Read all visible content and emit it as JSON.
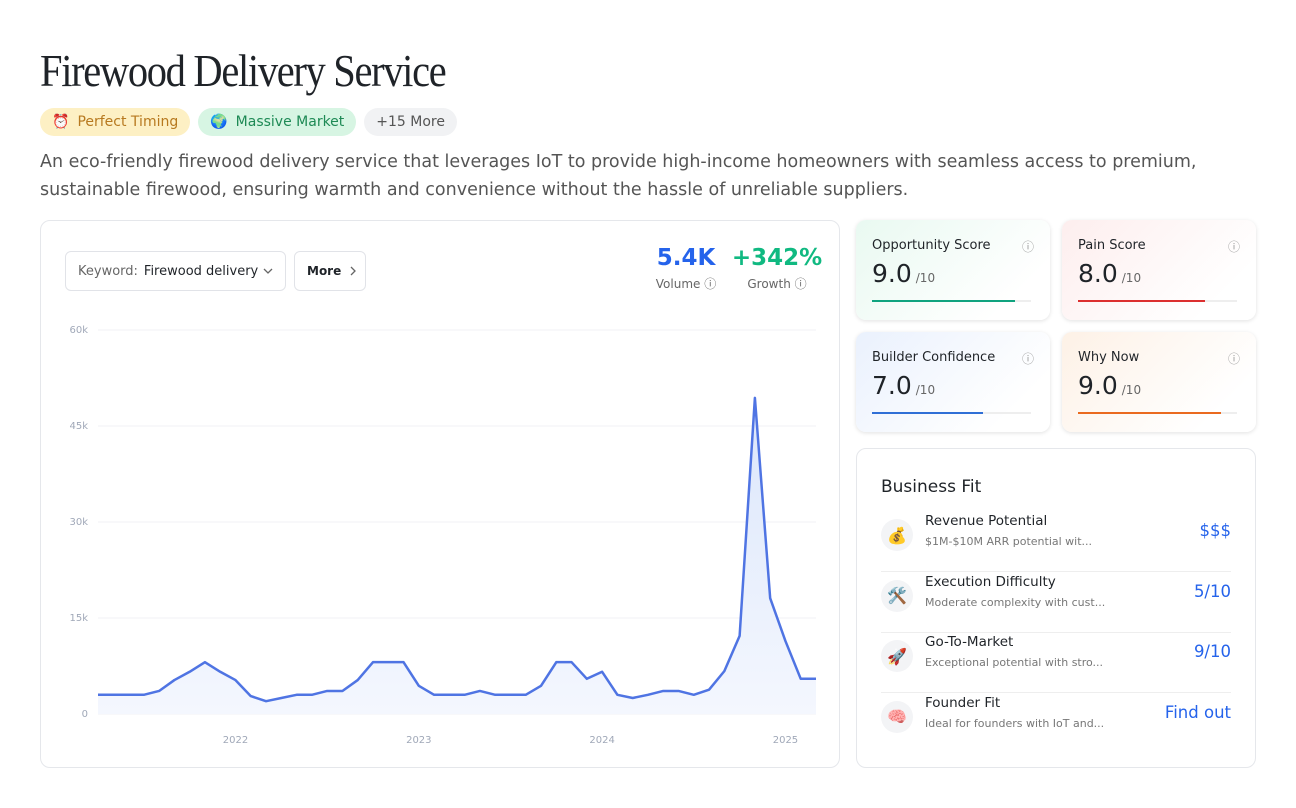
{
  "header": {
    "title": "Firewood Delivery Service",
    "tags": [
      {
        "icon": "⏰",
        "text": "Perfect Timing"
      },
      {
        "icon": "🌍",
        "text": "Massive Market"
      },
      {
        "text": "+15 More"
      }
    ],
    "description": "An eco-friendly firewood delivery service that leverages IoT to provide high-income homeowners with seamless access to premium, sustainable firewood, ensuring warmth and convenience without the hassle of unreliable suppliers."
  },
  "controls": {
    "keyword_label": "Keyword:",
    "keyword": "Firewood delivery",
    "more": "More"
  },
  "stats": [
    {
      "value": "5.4K",
      "label": "Volume"
    },
    {
      "value": "+342%",
      "label": "Growth"
    }
  ],
  "chart_data": {
    "type": "line",
    "color": "#4f74e3",
    "categories": [
      null,
      null,
      null,
      null,
      null,
      null,
      null,
      null,
      null,
      "2022",
      null,
      null,
      null,
      null,
      null,
      null,
      null,
      null,
      null,
      null,
      null,
      "2023",
      null,
      null,
      null,
      null,
      null,
      null,
      null,
      null,
      null,
      null,
      null,
      "2024",
      null,
      null,
      null,
      null,
      null,
      null,
      null,
      null,
      null,
      null,
      null,
      "2025",
      null,
      null
    ],
    "values": [
      3000,
      3000,
      3000,
      3000,
      3600,
      5300,
      6600,
      8100,
      6600,
      5300,
      2800,
      2000,
      2500,
      3000,
      3000,
      3600,
      3600,
      5300,
      8100,
      8100,
      8100,
      4400,
      3000,
      3000,
      3000,
      3600,
      3000,
      3000,
      3000,
      4400,
      8100,
      8100,
      5500,
      6600,
      3000,
      2500,
      3000,
      3600,
      3600,
      3000,
      3800,
      6700,
      12200,
      49400,
      18100,
      11400,
      5500,
      5500
    ],
    "ylim": [
      0,
      60000
    ],
    "yticks": [
      {
        "value": 0,
        "label": "0"
      },
      {
        "value": 15000,
        "label": "15k"
      },
      {
        "value": 30000,
        "label": "30k"
      },
      {
        "value": 45000,
        "label": "45k"
      },
      {
        "value": 60000,
        "label": "60k"
      }
    ],
    "grid": true
  },
  "scores": [
    {
      "name": "Opportunity Score",
      "score": 9,
      "score_label": "9.0",
      "scale": "/10",
      "max": 10,
      "color": "#10a37f",
      "bg": "#e9f9f1"
    },
    {
      "name": "Pain Score",
      "score": 8,
      "score_label": "8.0",
      "scale": "/10",
      "max": 10,
      "color": "#dc2f2f",
      "bg": "#fdeeee"
    },
    {
      "name": "Builder Confidence",
      "score": 7,
      "score_label": "7.0",
      "scale": "/10",
      "max": 10,
      "color": "#2f6fd6",
      "bg": "#eaf1fd"
    },
    {
      "name": "Why Now",
      "score": 9,
      "score_label": "9.0",
      "scale": "/10",
      "max": 10,
      "color": "#ea6a1f",
      "bg": "#fdf1e6"
    }
  ],
  "business_fit": {
    "title": "Business Fit",
    "items": [
      {
        "icon": "💰",
        "title": "Revenue Potential",
        "desc": "$1M-$10M ARR potential wit...",
        "value": "$$$"
      },
      {
        "icon": "🛠️",
        "title": "Execution Difficulty",
        "desc": "Moderate complexity with cust...",
        "value": "5/10"
      },
      {
        "icon": "🚀",
        "title": "Go-To-Market",
        "desc": "Exceptional potential with stro...",
        "value": "9/10"
      },
      {
        "icon": "🧠",
        "title": "Founder Fit",
        "desc": "Ideal for founders with IoT and...",
        "value": "Find out"
      }
    ]
  }
}
